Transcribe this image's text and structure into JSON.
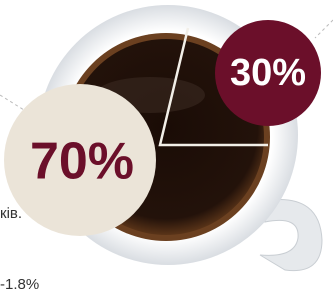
{
  "callouts": [
    {
      "label": "70%"
    },
    {
      "label": "30%"
    }
  ],
  "fragments": [
    "ків.",
    "-1.8%"
  ]
}
